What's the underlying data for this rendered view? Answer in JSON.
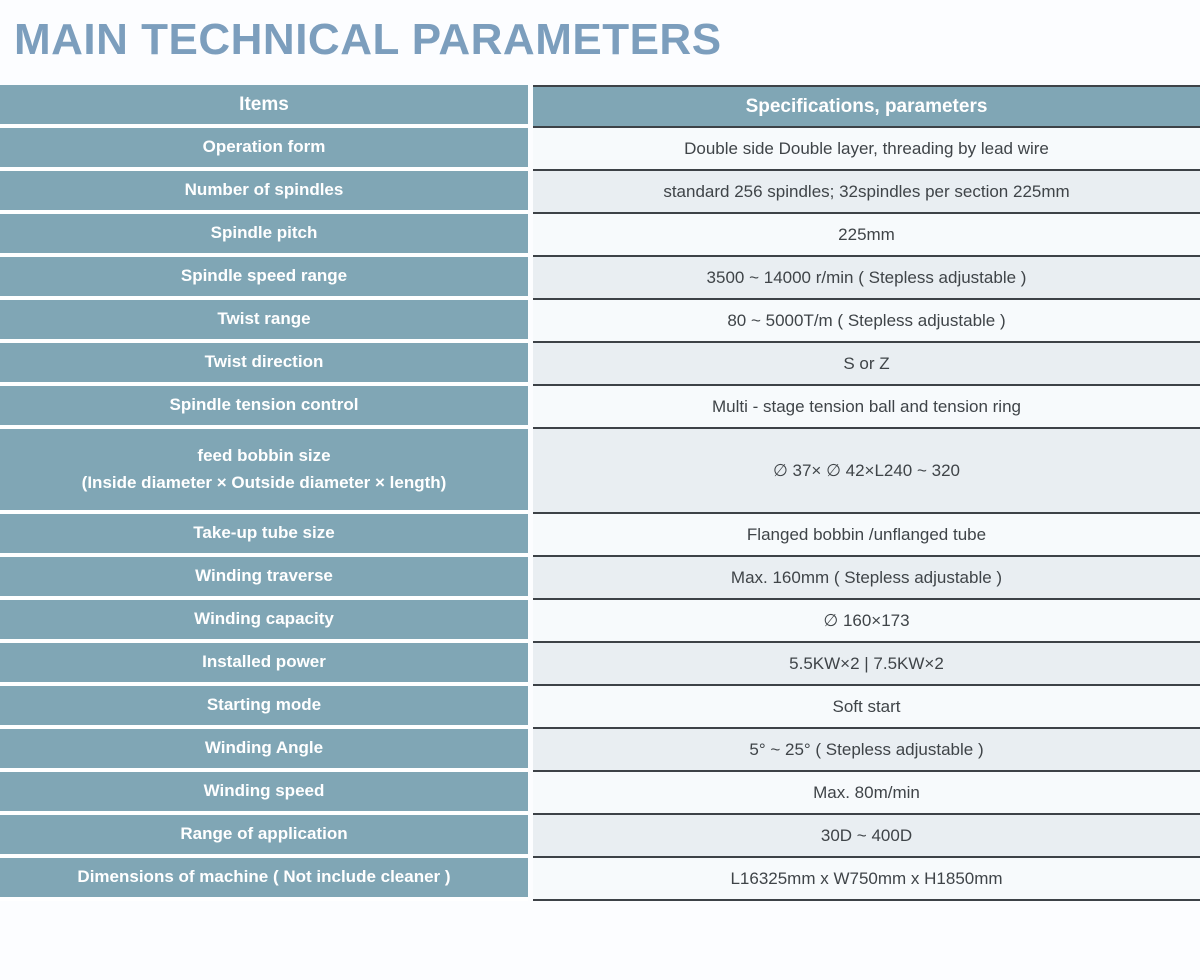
{
  "title": "MAIN TECHNICAL PARAMETERS",
  "colors": {
    "table_blue": "#80a6b5",
    "title_blue": "#7c9ebd",
    "row_light": "#f7fafc",
    "row_shaded": "#e9eef2",
    "border_dark": "#3d4247"
  },
  "table": {
    "header": {
      "items": "Items",
      "specs": "Specifications、 parameters"
    },
    "rows": [
      {
        "label_lines": [
          "Operation form"
        ],
        "value": "Double side Double layer， threading by lead wire"
      },
      {
        "label_lines": [
          "Number of spindles"
        ],
        "value": "standard 256 spindles； 32spindles per section 225mm"
      },
      {
        "label_lines": [
          "Spindle pitch"
        ],
        "value": "225mm"
      },
      {
        "label_lines": [
          "Spindle speed range"
        ],
        "value": "3500 ~ 14000 r/min ( Stepless adjustable )"
      },
      {
        "label_lines": [
          "Twist range"
        ],
        "value": "80 ～ 5000T/m ( Stepless adjustable )"
      },
      {
        "label_lines": [
          "Twist direction"
        ],
        "value": "S or Z"
      },
      {
        "label_lines": [
          "Spindle tension control"
        ],
        "value": "Multi - stage tension ball and tension ring"
      },
      {
        "label_lines": [
          "feed bobbin size",
          "(Inside diameter × Outside diameter × length)"
        ],
        "value": "∅ 37× ∅ 42×L240 ～ 320"
      },
      {
        "label_lines": [
          "Take-up tube size"
        ],
        "value": "Flanged bobbin /unflanged tube"
      },
      {
        "label_lines": [
          "Winding traverse"
        ],
        "value": "Max. 160mm （ Stepless adjustable ）"
      },
      {
        "label_lines": [
          "Winding capacity"
        ],
        "value": "∅ 160×173"
      },
      {
        "label_lines": [
          "Installed power"
        ],
        "value": "5.5KW×2 ｜ 7.5KW×2"
      },
      {
        "label_lines": [
          "Starting mode"
        ],
        "value": "Soft start"
      },
      {
        "label_lines": [
          "Winding Angle"
        ],
        "value": "5°～ 25° ( Stepless adjustable )"
      },
      {
        "label_lines": [
          "Winding speed"
        ],
        "value": "Max. 80m/min"
      },
      {
        "label_lines": [
          "Range of application"
        ],
        "value": "30D ～ 400D"
      },
      {
        "label_lines": [
          "Dimensions of machine ( Not include cleaner )"
        ],
        "value": "L16325mm x W750mm x H1850mm"
      }
    ]
  }
}
